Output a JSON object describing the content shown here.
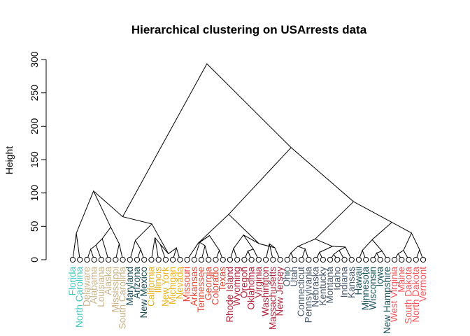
{
  "chart_data": {
    "type": "dendrogram",
    "title": "Hierarchical clustering on USArrests data",
    "xlabel": "",
    "ylabel": "Height",
    "ylim": [
      0,
      300
    ],
    "yticks": [
      0,
      50,
      100,
      150,
      200,
      250,
      300
    ],
    "leaves": [
      {
        "label": "Florida",
        "color": "#3ec9c0"
      },
      {
        "label": "North Carolina",
        "color": "#3ec9c0"
      },
      {
        "label": "Delaware",
        "color": "#c8b48a"
      },
      {
        "label": "Alabama",
        "color": "#c8b48a"
      },
      {
        "label": "Louisiana",
        "color": "#c8b48a"
      },
      {
        "label": "Alaska",
        "color": "#c8b48a"
      },
      {
        "label": "Mississippi",
        "color": "#c8b48a"
      },
      {
        "label": "South Carolina",
        "color": "#c8b48a"
      },
      {
        "label": "Maryland",
        "color": "#1a4f57"
      },
      {
        "label": "Arizona",
        "color": "#1a4f57"
      },
      {
        "label": "New Mexico",
        "color": "#1a4f57"
      },
      {
        "label": "California",
        "color": "#e8b321"
      },
      {
        "label": "Illinois",
        "color": "#e8b321"
      },
      {
        "label": "New York",
        "color": "#e8b321"
      },
      {
        "label": "Michigan",
        "color": "#e8b321"
      },
      {
        "label": "Nevada",
        "color": "#e8b321"
      },
      {
        "label": "Missouri",
        "color": "#e24a38"
      },
      {
        "label": "Arkansas",
        "color": "#e24a38"
      },
      {
        "label": "Tennessee",
        "color": "#e24a38"
      },
      {
        "label": "Georgia",
        "color": "#e24a38"
      },
      {
        "label": "Colorado",
        "color": "#e24a38"
      },
      {
        "label": "Texas",
        "color": "#e24a38"
      },
      {
        "label": "Rhode Island",
        "color": "#b0283f"
      },
      {
        "label": "Wyoming",
        "color": "#b0283f"
      },
      {
        "label": "Oregon",
        "color": "#b0283f"
      },
      {
        "label": "Oklahoma",
        "color": "#b0283f"
      },
      {
        "label": "Virginia",
        "color": "#b0283f"
      },
      {
        "label": "Washington",
        "color": "#b0283f"
      },
      {
        "label": "Massachusetts",
        "color": "#b0283f"
      },
      {
        "label": "New Jersey",
        "color": "#b0283f"
      },
      {
        "label": "Ohio",
        "color": "#4a5b6e"
      },
      {
        "label": "Utah",
        "color": "#4a5b6e"
      },
      {
        "label": "Connecticut",
        "color": "#4a5b6e"
      },
      {
        "label": "Pennsylvania",
        "color": "#4a5b6e"
      },
      {
        "label": "Nebraska",
        "color": "#4a5b6e"
      },
      {
        "label": "Kentucky",
        "color": "#4a5b6e"
      },
      {
        "label": "Montana",
        "color": "#4a5b6e"
      },
      {
        "label": "Idaho",
        "color": "#4a5b6e"
      },
      {
        "label": "Indiana",
        "color": "#4a5b6e"
      },
      {
        "label": "Kansas",
        "color": "#4a5b6e"
      },
      {
        "label": "Hawaii",
        "color": "#1a4f57"
      },
      {
        "label": "Minnesota",
        "color": "#1a4f57"
      },
      {
        "label": "Wisconsin",
        "color": "#1a4f57"
      },
      {
        "label": "Iowa",
        "color": "#1a4f57"
      },
      {
        "label": "New Hampshire",
        "color": "#1a4f57"
      },
      {
        "label": "West Virginia",
        "color": "#f0565d"
      },
      {
        "label": "Maine",
        "color": "#f0565d"
      },
      {
        "label": "South Dakota",
        "color": "#f0565d"
      },
      {
        "label": "North Dakota",
        "color": "#f0565d"
      },
      {
        "label": "Vermont",
        "color": "#f0565d"
      }
    ],
    "merges": [
      {
        "id": "a",
        "left": 0,
        "right": 1,
        "height": 39.6
      },
      {
        "id": "b",
        "left": 2,
        "right": 3,
        "height": 15.5
      },
      {
        "id": "c",
        "left": 4,
        "right": "b",
        "height": 22.0
      },
      {
        "id": "d",
        "left": 5,
        "right": "c",
        "height": 31.5
      },
      {
        "id": "e",
        "left": 6,
        "right": 7,
        "height": 23.9
      },
      {
        "id": "f",
        "left": "d",
        "right": "e",
        "height": 48.7
      },
      {
        "id": "g",
        "left": "a",
        "right": "f",
        "height": 102.9
      },
      {
        "id": "h",
        "left": 9,
        "right": 10,
        "height": 15.5
      },
      {
        "id": "i",
        "left": 8,
        "right": "h",
        "height": 28.9
      },
      {
        "id": "j",
        "left": 11,
        "right": 12,
        "height": 33.1
      },
      {
        "id": "k",
        "left": "j",
        "right": 13,
        "height": 23.0
      },
      {
        "id": "l",
        "left": 14,
        "right": 15,
        "height": 17.5
      },
      {
        "id": "m",
        "left": "k",
        "right": "l",
        "height": 9.0
      },
      {
        "id": "n",
        "left": "i",
        "right": "m",
        "height": 53.6
      },
      {
        "id": "o",
        "left": "g",
        "right": "n",
        "height": 64.4
      },
      {
        "id": "p",
        "left": 18,
        "right": 19,
        "height": 21.0
      },
      {
        "id": "q",
        "left": 17,
        "right": "p",
        "height": 26.0
      },
      {
        "id": "r",
        "left": 20,
        "right": 21,
        "height": 14.0
      },
      {
        "id": "s",
        "left": "q",
        "right": "r",
        "height": 36.1
      },
      {
        "id": "t",
        "left": 16,
        "right": "s",
        "height": 25.0
      },
      {
        "id": "u",
        "left": 22,
        "right": 23,
        "height": 17.0
      },
      {
        "id": "v",
        "left": 24,
        "right": 25,
        "height": 13.0
      },
      {
        "id": "w",
        "left": "v",
        "right": 26,
        "height": 16.0
      },
      {
        "id": "x",
        "left": "u",
        "right": "w",
        "height": 37.0
      },
      {
        "id": "y",
        "left": 27,
        "right": 28,
        "height": 24.0
      },
      {
        "id": "z",
        "left": 29,
        "right": "y",
        "height": 18.0
      },
      {
        "id": "aa",
        "left": "x",
        "right": "z",
        "height": 24.0
      },
      {
        "id": "ab",
        "left": "t",
        "right": "aa",
        "height": 68.0
      },
      {
        "id": "ac",
        "left": 30,
        "right": 31,
        "height": 10.0
      },
      {
        "id": "ad",
        "left": 32,
        "right": 33,
        "height": 16.0
      },
      {
        "id": "ae",
        "left": "ac",
        "right": "ad",
        "height": 20.0
      },
      {
        "id": "af",
        "left": 34,
        "right": 35,
        "height": 11.0
      },
      {
        "id": "ag",
        "left": 36,
        "right": 37,
        "height": 8.0
      },
      {
        "id": "ah",
        "left": "ag",
        "right": 38,
        "height": 14.0
      },
      {
        "id": "ai",
        "left": "ah",
        "right": 39,
        "height": 19.0
      },
      {
        "id": "aj",
        "left": "af",
        "right": "ai",
        "height": 20.0
      },
      {
        "id": "ak",
        "left": "ae",
        "right": "aj",
        "height": 31.0
      },
      {
        "id": "al",
        "left": 40,
        "right": 41,
        "height": 14.0
      },
      {
        "id": "am",
        "left": 42,
        "right": 43,
        "height": 10.0
      },
      {
        "id": "an",
        "left": "am",
        "right": 44,
        "height": 13.0
      },
      {
        "id": "ao",
        "left": "al",
        "right": "an",
        "height": 30.0
      },
      {
        "id": "ap",
        "left": 45,
        "right": 46,
        "height": 9.0
      },
      {
        "id": "aq",
        "left": "ap",
        "right": 47,
        "height": 14.0
      },
      {
        "id": "ar",
        "left": 48,
        "right": 49,
        "height": 15.0
      },
      {
        "id": "as",
        "left": "aq",
        "right": "ar",
        "height": 40.0
      },
      {
        "id": "at",
        "left": "ao",
        "right": "as",
        "height": 56.0
      },
      {
        "id": "au",
        "left": "ak",
        "right": "at",
        "height": 87.0
      },
      {
        "id": "av",
        "left": "ab",
        "right": "au",
        "height": 168.0
      },
      {
        "id": "aw",
        "left": "o",
        "right": "av",
        "height": 293.6
      }
    ]
  }
}
